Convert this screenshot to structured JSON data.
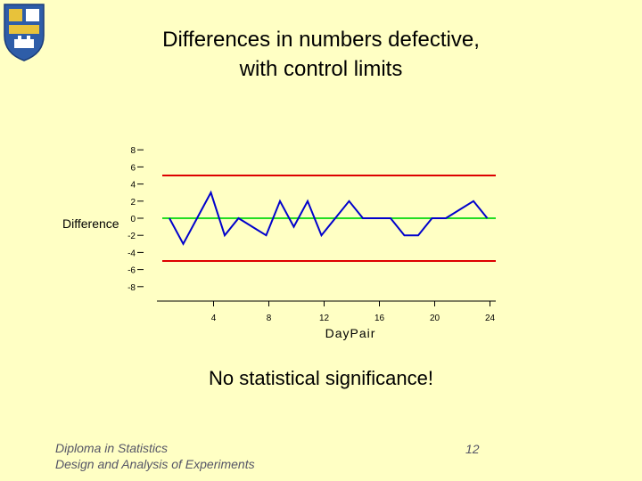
{
  "slide": {
    "title_line1": "Differences in numbers defective,",
    "title_line2": "with control limits",
    "caption": "No statistical significance!",
    "footer_line1": "Diploma in Statistics",
    "footer_line2": "Design and Analysis of Experiments",
    "page_number": "12",
    "background_color": "#FFFFC4"
  },
  "logo": {
    "icon": "university-crest-icon",
    "colors": [
      "#2E5DA8",
      "#E8C23A",
      "#FFFFFF"
    ]
  },
  "chart_data": {
    "type": "line",
    "title": "",
    "xlabel": "DayPair",
    "ylabel": "Difference",
    "ylim": [
      -8,
      8
    ],
    "xlim": [
      0,
      24
    ],
    "y_ticks": [
      "8",
      "6",
      "4",
      "2",
      "0",
      "-2",
      "-4",
      "-6",
      "-8"
    ],
    "x_ticks": [
      "4",
      "8",
      "12",
      "16",
      "20",
      "24"
    ],
    "series": [
      {
        "color": "#0000CC",
        "x": [
          1,
          2,
          3,
          4,
          5,
          6,
          7,
          8,
          9,
          10,
          11,
          12,
          13,
          14,
          15,
          16,
          17,
          18,
          19,
          20,
          21,
          22,
          23,
          24
        ],
        "y": [
          0,
          -3,
          0,
          3,
          -2,
          0,
          -1,
          -2,
          2,
          -1,
          2,
          -2,
          0,
          2,
          0,
          0,
          0,
          -2,
          -2,
          0,
          0,
          1,
          2,
          0
        ]
      }
    ],
    "reference_lines": [
      {
        "y": 5,
        "color": "#DD0000",
        "meaning": "upper control limit"
      },
      {
        "y": 0,
        "color": "#22DD22",
        "meaning": "centre line"
      },
      {
        "y": -5,
        "color": "#DD0000",
        "meaning": "lower control limit"
      }
    ],
    "grid": false
  }
}
